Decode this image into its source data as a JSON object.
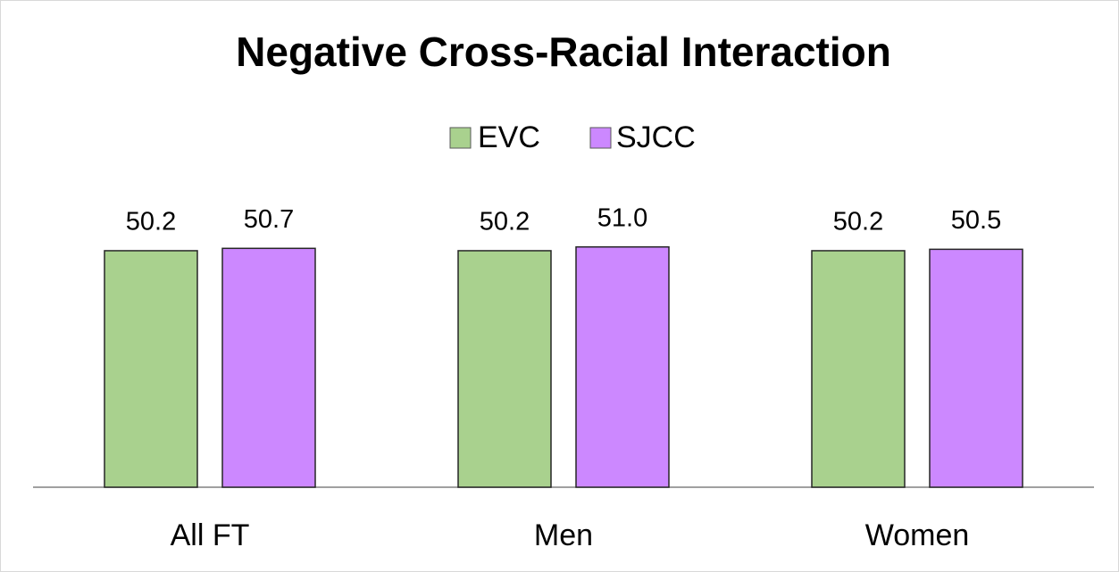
{
  "chart_data": {
    "type": "bar",
    "title": "Negative Cross-Racial Interaction",
    "categories": [
      "All FT",
      "Men",
      "Women"
    ],
    "series": [
      {
        "name": "EVC",
        "color": "#a9d18e",
        "values": [
          50.2,
          50.2,
          50.2
        ]
      },
      {
        "name": "SJCC",
        "color": "#cc88ff",
        "values": [
          50.7,
          51.0,
          50.5
        ],
        "value_labels": [
          "50.7",
          "51.0",
          "50.5"
        ]
      }
    ]
  }
}
